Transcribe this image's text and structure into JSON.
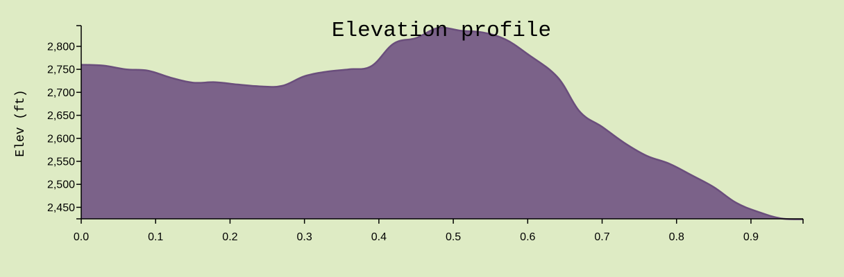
{
  "chart_data": {
    "type": "area",
    "title": "Elevation profile",
    "xlabel": "",
    "ylabel": "Elev (ft)",
    "xlim": [
      0,
      0.97
    ],
    "ylim": [
      2425,
      2845
    ],
    "grid": false,
    "colors": {
      "background": "#deebc4",
      "fill": "#7b6289",
      "stroke": "#6a4e7c"
    },
    "x_ticks": [
      0.0,
      0.1,
      0.2,
      0.3,
      0.4,
      0.5,
      0.6,
      0.7,
      0.8,
      0.9
    ],
    "x_tick_labels": [
      "0.0",
      "0.1",
      "0.2",
      "0.3",
      "0.4",
      "0.5",
      "0.6",
      "0.7",
      "0.8",
      "0.9"
    ],
    "y_ticks": [
      2450,
      2500,
      2550,
      2600,
      2650,
      2700,
      2750,
      2800
    ],
    "y_tick_labels": [
      "2,450",
      "2,500",
      "2,550",
      "2,600",
      "2,650",
      "2,700",
      "2,750",
      "2,800"
    ],
    "series": [
      {
        "x": [
          0.0,
          0.03,
          0.06,
          0.09,
          0.12,
          0.15,
          0.18,
          0.21,
          0.24,
          0.27,
          0.3,
          0.33,
          0.36,
          0.39,
          0.42,
          0.45,
          0.48,
          0.51,
          0.54,
          0.57,
          0.6,
          0.64,
          0.67,
          0.7,
          0.73,
          0.76,
          0.79,
          0.82,
          0.85,
          0.88,
          0.91,
          0.94,
          0.97
        ],
        "y": [
          2760,
          2758,
          2750,
          2747,
          2732,
          2721,
          2722,
          2717,
          2713,
          2714,
          2735,
          2745,
          2750,
          2757,
          2806,
          2818,
          2840,
          2834,
          2830,
          2815,
          2783,
          2733,
          2658,
          2625,
          2590,
          2562,
          2545,
          2520,
          2494,
          2460,
          2440,
          2426,
          2424
        ]
      }
    ]
  }
}
